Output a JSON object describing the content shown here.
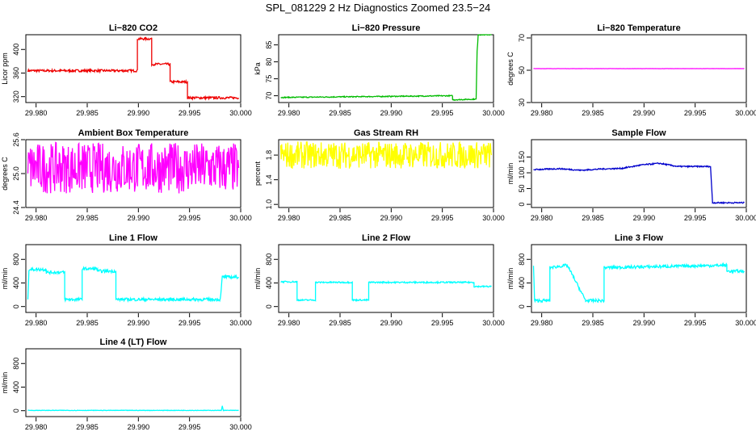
{
  "page": {
    "title": "SPL_081229  2 Hz Diagnostics Zoomed 23.5−24"
  },
  "colors": {
    "co2": "#ee0000",
    "pressure": "#00bb00",
    "temperature": "#ff00ff",
    "ambient": "#ff00ff",
    "rh": "#ffff00",
    "sample_flow": "#0000cc",
    "line_flow": "#00ffff"
  },
  "chart_data": [
    {
      "type": "line",
      "title": "Li−820 CO2",
      "xlabel": "",
      "ylabel": "Licor ppm",
      "xlim": [
        29.979,
        30.0
      ],
      "ylim": [
        310,
        425
      ],
      "x_ticks": [
        29.98,
        29.985,
        29.99,
        29.995,
        30.0
      ],
      "x_tick_labels": [
        "29.980",
        "29.985",
        "29.990",
        "29.995",
        "30.000"
      ],
      "y_ticks": [
        320,
        360,
        400
      ],
      "y_tick_labels": [
        "320",
        "360",
        "400"
      ],
      "color_key": "co2",
      "series": [
        {
          "x": [
            29.9792,
            29.9899,
            29.9899,
            29.9913,
            29.9913,
            29.9931,
            29.9931,
            29.9948,
            29.9948,
            29.9998
          ],
          "values": [
            364,
            364,
            418,
            418,
            375,
            375,
            345,
            345,
            318,
            318
          ],
          "noise": 2
        }
      ]
    },
    {
      "type": "line",
      "title": "Li−820 Pressure",
      "xlabel": "",
      "ylabel": "kPa",
      "xlim": [
        29.979,
        30.0
      ],
      "ylim": [
        68,
        88
      ],
      "x_ticks": [
        29.98,
        29.985,
        29.99,
        29.995,
        30.0
      ],
      "x_tick_labels": [
        "29.980",
        "29.985",
        "29.990",
        "29.995",
        "30.000"
      ],
      "y_ticks": [
        70,
        75,
        80,
        85
      ],
      "y_tick_labels": [
        "70",
        "75",
        "80",
        "85"
      ],
      "color_key": "pressure",
      "series": [
        {
          "x": [
            29.9792,
            29.996,
            29.996,
            29.9983,
            29.9984,
            29.9985,
            29.9998
          ],
          "values": [
            69.5,
            70,
            68.8,
            69.0,
            83,
            88,
            88
          ],
          "noise": 0.15
        }
      ]
    },
    {
      "type": "line",
      "title": "Li−820 Temperature",
      "xlabel": "",
      "ylabel": "degrees C",
      "xlim": [
        29.979,
        30.0
      ],
      "ylim": [
        30,
        72
      ],
      "x_ticks": [
        29.98,
        29.985,
        29.99,
        29.995,
        30.0
      ],
      "x_tick_labels": [
        "29.980",
        "29.985",
        "29.990",
        "29.995",
        "30.000"
      ],
      "y_ticks": [
        30,
        50,
        70
      ],
      "y_tick_labels": [
        "30",
        "50",
        "70"
      ],
      "color_key": "temperature",
      "series": [
        {
          "x": [
            29.9792,
            29.9998
          ],
          "values": [
            51,
            51
          ],
          "noise": 0.05
        }
      ]
    },
    {
      "type": "line",
      "title": "Ambient Box Temperature",
      "xlabel": "",
      "ylabel": "degrees C",
      "xlim": [
        29.979,
        30.0
      ],
      "ylim": [
        24.4,
        25.6
      ],
      "x_ticks": [
        29.98,
        29.985,
        29.99,
        29.995,
        30.0
      ],
      "x_tick_labels": [
        "29.980",
        "29.985",
        "29.990",
        "29.995",
        "30.000"
      ],
      "y_ticks": [
        24.4,
        25.0,
        25.6
      ],
      "y_tick_labels": [
        "24.4",
        "25.0",
        "25.6"
      ],
      "color_key": "ambient",
      "series": [
        {
          "x": [
            29.9792,
            29.9998
          ],
          "values": [
            25.1,
            25.1
          ],
          "noise": 0.45
        }
      ]
    },
    {
      "type": "line",
      "title": "Gas Stream RH",
      "xlabel": "",
      "ylabel": "percent",
      "xlim": [
        29.979,
        30.0
      ],
      "ylim": [
        0.95,
        2.05
      ],
      "x_ticks": [
        29.98,
        29.985,
        29.99,
        29.995,
        30.0
      ],
      "x_tick_labels": [
        "29.980",
        "29.985",
        "29.990",
        "29.995",
        "30.000"
      ],
      "y_ticks": [
        1.0,
        1.4,
        1.8
      ],
      "y_tick_labels": [
        "1.0",
        "1.4",
        "1.8"
      ],
      "color_key": "rh",
      "series": [
        {
          "x": [
            29.9792,
            29.9998
          ],
          "values": [
            1.8,
            1.8
          ],
          "noise": 0.22
        }
      ]
    },
    {
      "type": "line",
      "title": "Sample Flow",
      "xlabel": "",
      "ylabel": "ml/min",
      "xlim": [
        29.979,
        30.0
      ],
      "ylim": [
        -10,
        205
      ],
      "x_ticks": [
        29.98,
        29.985,
        29.99,
        29.995,
        30.0
      ],
      "x_tick_labels": [
        "29.980",
        "29.985",
        "29.990",
        "29.995",
        "30.000"
      ],
      "y_ticks": [
        0,
        50,
        100,
        150
      ],
      "y_tick_labels": [
        "0",
        "50",
        "100",
        "150"
      ],
      "color_key": "sample_flow",
      "series": [
        {
          "x": [
            29.9792,
            29.9818,
            29.9838,
            29.9858,
            29.9878,
            29.9898,
            29.9915,
            29.9933,
            29.9965,
            29.9967,
            29.9998
          ],
          "values": [
            110,
            113,
            108,
            112,
            114,
            125,
            130,
            120,
            120,
            5,
            5
          ],
          "noise": 2
        }
      ]
    },
    {
      "type": "line",
      "title": "Line 1 Flow",
      "xlabel": "",
      "ylabel": "ml/min",
      "xlim": [
        29.979,
        30.0
      ],
      "ylim": [
        -100,
        1050
      ],
      "x_ticks": [
        29.98,
        29.985,
        29.99,
        29.995,
        30.0
      ],
      "x_tick_labels": [
        "29.980",
        "29.985",
        "29.990",
        "29.995",
        "30.000"
      ],
      "y_ticks": [
        0,
        400,
        800
      ],
      "y_tick_labels": [
        "0",
        "400",
        "800"
      ],
      "color_key": "line_flow",
      "series": [
        {
          "x": [
            29.9792,
            29.9793,
            29.981,
            29.981,
            29.9828,
            29.9828,
            29.9845,
            29.9845,
            29.986,
            29.986,
            29.9878,
            29.9878,
            29.998,
            29.9982,
            29.9998
          ],
          "values": [
            130,
            630,
            630,
            580,
            580,
            120,
            120,
            640,
            640,
            600,
            600,
            120,
            120,
            500,
            500
          ],
          "noise": 25
        }
      ]
    },
    {
      "type": "line",
      "title": "Line 2 Flow",
      "xlabel": "",
      "ylabel": "ml/min",
      "xlim": [
        29.979,
        30.0
      ],
      "ylim": [
        -100,
        1050
      ],
      "x_ticks": [
        29.98,
        29.985,
        29.99,
        29.995,
        30.0
      ],
      "x_tick_labels": [
        "29.980",
        "29.985",
        "29.990",
        "29.995",
        "30.000"
      ],
      "y_ticks": [
        0,
        400,
        800
      ],
      "y_tick_labels": [
        "0",
        "400",
        "800"
      ],
      "color_key": "line_flow",
      "series": [
        {
          "x": [
            29.9792,
            29.9808,
            29.9808,
            29.9826,
            29.9826,
            29.9862,
            29.9862,
            29.9878,
            29.9878,
            29.9981,
            29.9981,
            29.9998
          ],
          "values": [
            420,
            420,
            110,
            110,
            410,
            410,
            110,
            110,
            410,
            410,
            340,
            340
          ],
          "noise": 12
        }
      ]
    },
    {
      "type": "line",
      "title": "Line 3 Flow",
      "xlabel": "",
      "ylabel": "ml/min",
      "xlim": [
        29.979,
        30.0
      ],
      "ylim": [
        -100,
        1050
      ],
      "x_ticks": [
        29.98,
        29.985,
        29.99,
        29.995,
        30.0
      ],
      "x_tick_labels": [
        "29.980",
        "29.985",
        "29.990",
        "29.995",
        "30.000"
      ],
      "y_ticks": [
        0,
        400,
        800
      ],
      "y_tick_labels": [
        "0",
        "400",
        "800"
      ],
      "color_key": "line_flow",
      "series": [
        {
          "x": [
            29.9792,
            29.9793,
            29.9794,
            29.9808,
            29.9808,
            29.9825,
            29.9825,
            29.9843,
            29.9843,
            29.9861,
            29.9861,
            29.9981,
            29.9981,
            29.9998
          ],
          "values": [
            700,
            100,
            100,
            100,
            660,
            700,
            700,
            100,
            100,
            100,
            660,
            700,
            600,
            600
          ],
          "noise": 25
        }
      ]
    },
    {
      "type": "line",
      "title": "Line 4 (LT) Flow",
      "xlabel": "",
      "ylabel": "ml/min",
      "xlim": [
        29.979,
        30.0
      ],
      "ylim": [
        -100,
        1050
      ],
      "x_ticks": [
        29.98,
        29.985,
        29.99,
        29.995,
        30.0
      ],
      "x_tick_labels": [
        "29.980",
        "29.985",
        "29.990",
        "29.995",
        "30.000"
      ],
      "y_ticks": [
        0,
        400,
        800
      ],
      "y_tick_labels": [
        "0",
        "400",
        "800"
      ],
      "color_key": "line_flow",
      "series": [
        {
          "x": [
            29.9792,
            29.9981,
            29.9982,
            29.9983,
            29.9998
          ],
          "values": [
            5,
            5,
            80,
            5,
            5
          ],
          "noise": 4
        }
      ]
    }
  ]
}
